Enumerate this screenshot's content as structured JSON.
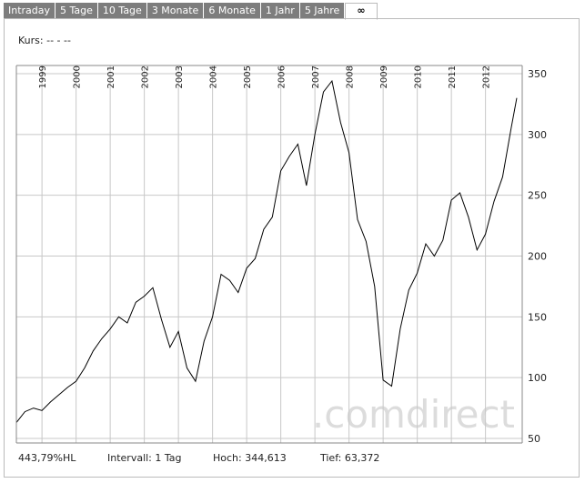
{
  "tabs": [
    {
      "label": "Intraday",
      "active": false
    },
    {
      "label": "5 Tage",
      "active": false
    },
    {
      "label": "10 Tage",
      "active": false
    },
    {
      "label": "3 Monate",
      "active": false
    },
    {
      "label": "6 Monate",
      "active": false
    },
    {
      "label": "1 Jahr",
      "active": false
    },
    {
      "label": "5 Jahre",
      "active": false
    },
    {
      "label": "∞",
      "active": true
    }
  ],
  "kurs": "Kurs: -- - --",
  "watermark": ".comdirect",
  "footer": {
    "performance": "443,79%HL",
    "intervall": "Intervall: 1 Tag",
    "hoch": "Hoch: 344,613",
    "tief": "Tief: 63,372"
  },
  "colors": {
    "line": "#000000",
    "grid": "#c8c8c8",
    "tab_bg": "#7d7d7d",
    "watermark": "#dcdcdc"
  },
  "chart_data": {
    "type": "line",
    "x_start": "1998-04",
    "x_end": "2012-12",
    "xticks": [
      "1999",
      "2000",
      "2001",
      "2002",
      "2003",
      "2004",
      "2005",
      "2006",
      "2007",
      "2008",
      "2009",
      "2010",
      "2011",
      "2012"
    ],
    "yticks": [
      50,
      100,
      150,
      200,
      250,
      300,
      350
    ],
    "ylim": [
      50,
      350
    ],
    "series": [
      {
        "x": [
          "1998-04",
          "1998-07",
          "1998-10",
          "1999-01",
          "1999-04",
          "1999-07",
          "1999-10",
          "2000-01",
          "2000-04",
          "2000-07",
          "2000-10",
          "2001-01",
          "2001-04",
          "2001-07",
          "2001-10",
          "2002-01",
          "2002-04",
          "2002-07",
          "2002-10",
          "2003-01",
          "2003-04",
          "2003-07",
          "2003-10",
          "2004-01",
          "2004-04",
          "2004-07",
          "2004-10",
          "2005-01",
          "2005-04",
          "2005-07",
          "2005-10",
          "2006-01",
          "2006-04",
          "2006-07",
          "2006-10",
          "2007-01",
          "2007-04",
          "2007-07",
          "2007-10",
          "2008-01",
          "2008-04",
          "2008-07",
          "2008-10",
          "2009-01",
          "2009-04",
          "2009-07",
          "2009-10",
          "2010-01",
          "2010-04",
          "2010-07",
          "2010-10",
          "2011-01",
          "2011-04",
          "2011-07",
          "2011-10",
          "2012-01",
          "2012-04",
          "2012-07",
          "2012-10",
          "2012-12"
        ],
        "y": [
          63,
          72,
          75,
          73,
          80,
          86,
          92,
          97,
          108,
          122,
          132,
          140,
          150,
          145,
          162,
          167,
          174,
          148,
          125,
          138,
          108,
          97,
          130,
          150,
          185,
          180,
          170,
          190,
          198,
          222,
          232,
          270,
          282,
          292,
          258,
          300,
          335,
          344,
          310,
          285,
          230,
          212,
          175,
          98,
          93,
          140,
          172,
          186,
          210,
          200,
          213,
          246,
          252,
          232,
          205,
          218,
          245,
          265,
          305,
          330
        ]
      }
    ]
  }
}
